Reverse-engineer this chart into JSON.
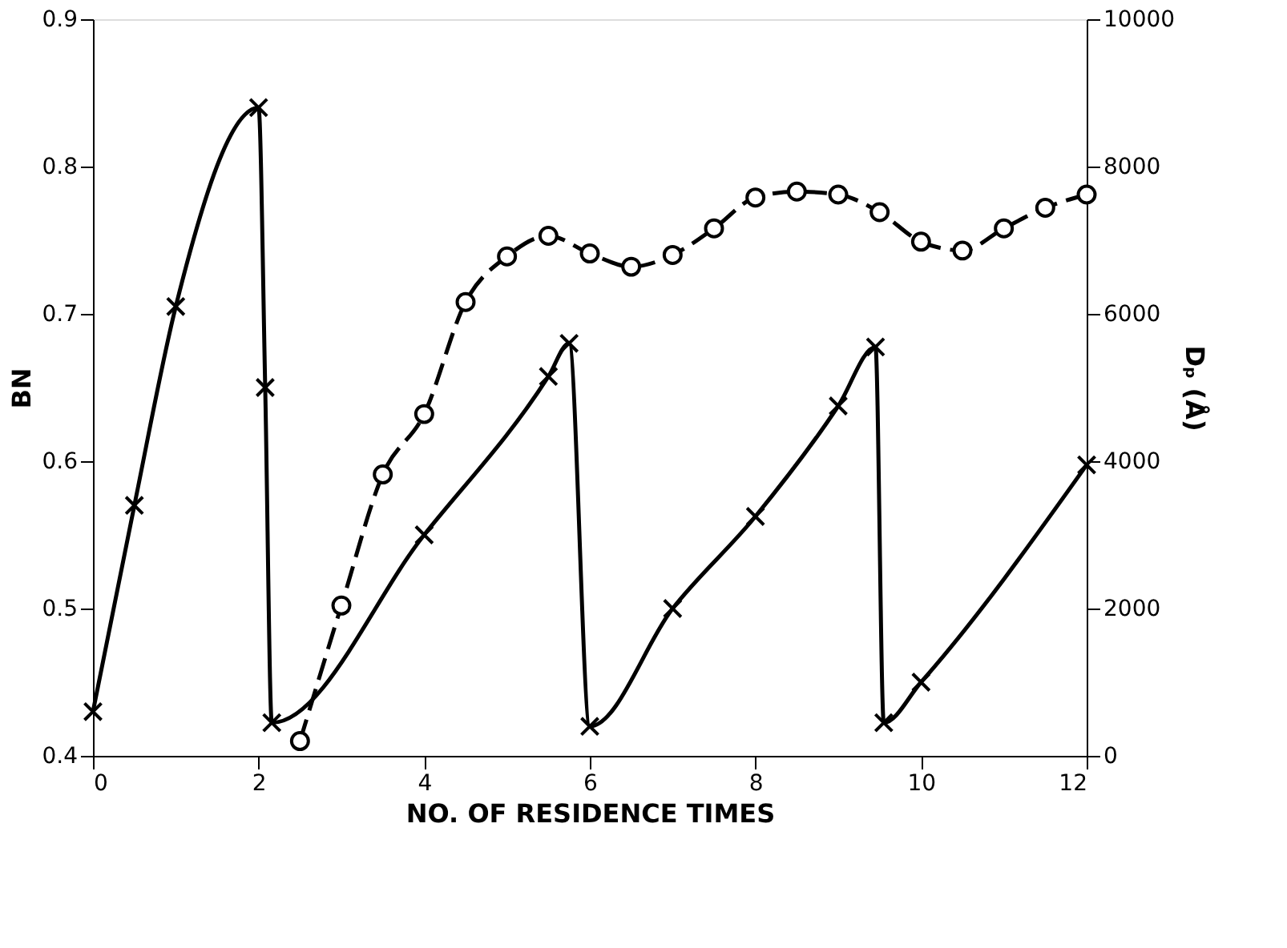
{
  "chart_data": {
    "type": "line",
    "xlabel": "NO. OF RESIDENCE TIMES",
    "ylabel": "BN",
    "y2label": "Dₚ (Å)",
    "xlim": [
      0,
      12
    ],
    "xticks": [
      0,
      2,
      4,
      6,
      8,
      10,
      12
    ],
    "ylim": [
      0.4,
      0.9
    ],
    "yticks": [
      0.4,
      0.5,
      0.6,
      0.7,
      0.8,
      0.9
    ],
    "y2lim": [
      0,
      10000
    ],
    "y2ticks": [
      0,
      2000,
      4000,
      6000,
      8000,
      10000
    ],
    "grid": false,
    "series": [
      {
        "color": "#000000",
        "marker": "circle",
        "line_style": "dashed",
        "x": [
          2.5,
          3,
          3.5,
          4,
          4.5,
          5,
          5.5,
          6,
          6.5,
          7,
          7.5,
          8,
          8.5,
          9,
          9.5,
          10,
          10.5,
          11,
          11.5,
          12
        ],
        "values": [
          0.41,
          0.502,
          0.591,
          0.632,
          0.708,
          0.739,
          0.753,
          0.741,
          0.732,
          0.74,
          0.758,
          0.779,
          0.783,
          0.781,
          0.769,
          0.749,
          0.743,
          0.758,
          0.772,
          0.781
        ]
      },
      {
        "color": "#000000",
        "marker": "cross",
        "line_style": "solid",
        "axis": "y2",
        "x": [
          0,
          0.5,
          1,
          2,
          2.08,
          2.16,
          4,
          5.5,
          5.75,
          6,
          7,
          8,
          9,
          9.45,
          9.55,
          10,
          12
        ],
        "values": [
          600,
          3400,
          6100,
          8800,
          5000,
          450,
          3000,
          5150,
          5600,
          400,
          2000,
          3250,
          4750,
          5550,
          450,
          1000,
          3950
        ]
      }
    ]
  }
}
